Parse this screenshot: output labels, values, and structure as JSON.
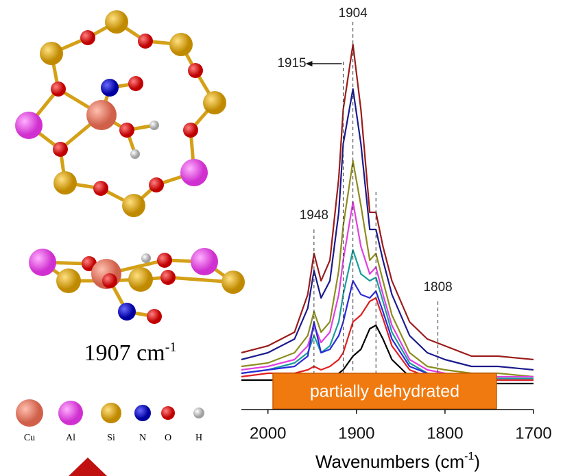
{
  "chart_data": {
    "type": "line",
    "x_label": "Wavenumbers (cm",
    "x_label_exp": "-1",
    "x_label_end": ")",
    "xlim": [
      2030,
      1700
    ],
    "xticks": [
      2000,
      1900,
      1800,
      1700
    ],
    "ylim": [
      0,
      100
    ],
    "x": [
      2030,
      2000,
      1970,
      1955,
      1948,
      1940,
      1930,
      1920,
      1915,
      1904,
      1895,
      1885,
      1878,
      1870,
      1860,
      1840,
      1820,
      1800,
      1770,
      1740,
      1700
    ],
    "series": [
      {
        "color": "#9b1b1b",
        "values": [
          9,
          11,
          15,
          26,
          38,
          30,
          36,
          60,
          80,
          99,
          80,
          50,
          50,
          40,
          30,
          18,
          13,
          11,
          8,
          8,
          7
        ]
      },
      {
        "color": "#1a1a8c",
        "values": [
          7,
          9,
          13,
          22,
          33,
          25,
          30,
          50,
          70,
          86,
          70,
          45,
          45,
          36,
          26,
          14,
          9,
          7,
          5,
          5,
          4
        ]
      },
      {
        "color": "#8c8c1e",
        "values": [
          5,
          6,
          9,
          14,
          21,
          15,
          18,
          33,
          46,
          65,
          52,
          36,
          38,
          30,
          20,
          9,
          5,
          4,
          3,
          3,
          2
        ]
      },
      {
        "color": "#e040e0",
        "values": [
          4,
          5,
          7,
          11,
          17,
          12,
          15,
          26,
          36,
          53,
          40,
          32,
          34,
          26,
          17,
          7,
          4,
          3,
          2,
          2,
          2
        ]
      },
      {
        "color": "#1a9c9c",
        "values": [
          3,
          4,
          6,
          9,
          14,
          9,
          11,
          18,
          26,
          39,
          32,
          30,
          31,
          24,
          15,
          6,
          3,
          2,
          2,
          1.5,
          1.5
        ]
      },
      {
        "color": "#2a2ad8",
        "values": [
          3,
          4,
          5,
          8,
          18,
          9,
          10,
          14,
          18,
          30,
          26,
          25,
          27,
          21,
          13,
          5,
          3,
          2,
          1.5,
          1,
          1
        ]
      },
      {
        "color": "#e02020",
        "values": [
          2,
          3,
          3,
          4,
          5,
          4,
          5,
          7,
          9,
          18,
          20,
          24,
          25,
          19,
          11,
          4,
          2,
          1,
          1,
          1,
          1
        ]
      },
      {
        "color": "#000000",
        "values": [
          1,
          1,
          1,
          1,
          2,
          1,
          2,
          3,
          4,
          8,
          10,
          16,
          17,
          13,
          7,
          2,
          1,
          0.5,
          0,
          0,
          0
        ]
      }
    ],
    "labeled_lines": [
      1904,
      1915,
      1948,
      1808
    ],
    "dashed_lines": [
      1878
    ],
    "box_text": "partially dehydrated"
  },
  "structure": {
    "frequency": "1907 cm",
    "frequency_exp": "-1",
    "atoms": [
      "Cu",
      "Al",
      "Si",
      "N",
      "O",
      "H"
    ]
  }
}
